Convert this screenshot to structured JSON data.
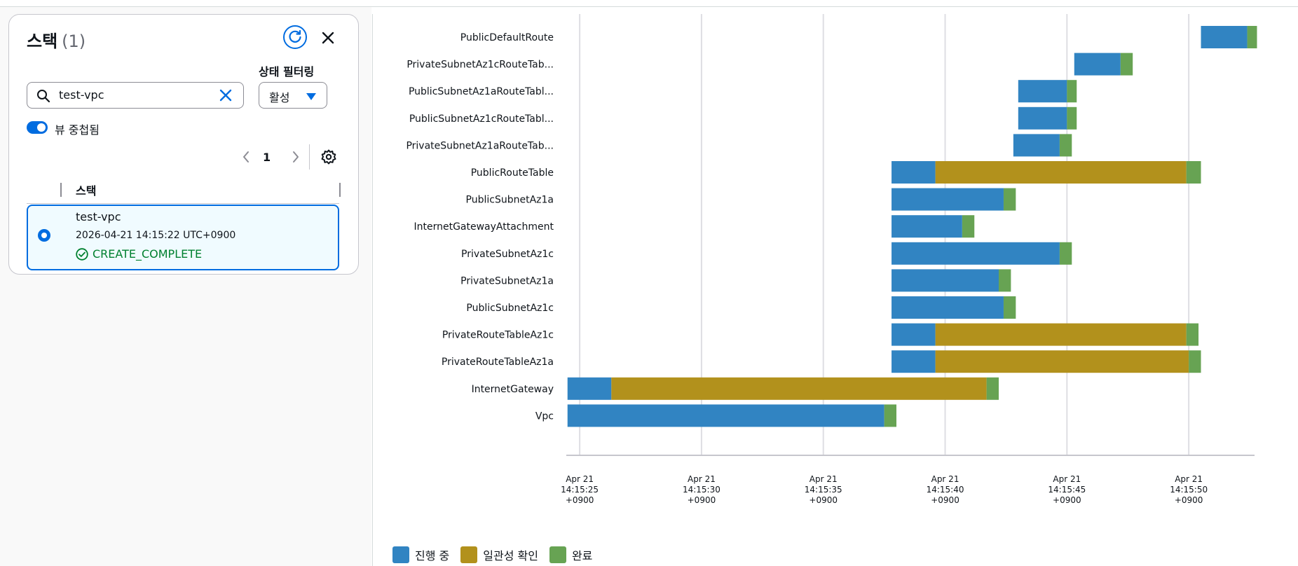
{
  "panel": {
    "title": "스택",
    "count": "(1)",
    "filter_label": "상태 필터링",
    "search_value": "test-vpc",
    "select_value": "활성",
    "toggle_label": "뷰 중첩됨",
    "toggle_on": true,
    "page_number": "1",
    "table_header": "스택",
    "row": {
      "name": "test-vpc",
      "date": "2026-04-21 14:15:22 UTC+0900",
      "status": "CREATE_COMPLETE",
      "selected": true
    }
  },
  "colors": {
    "in_progress": "#3184c2",
    "consistency_check": "#b2911c",
    "complete": "#67a353",
    "accent": "#006ce0",
    "success": "#00802f"
  },
  "legend": {
    "in_progress": "진행 중",
    "consistency_check": "일관성 확인",
    "complete": "완료"
  },
  "chart_data": {
    "type": "bar",
    "orientation": "horizontal-timeline",
    "time_unit": "seconds past Apr 21 14:15 +0900",
    "xlim": [
      24.45,
      52.7
    ],
    "x_ticks": [
      {
        "value": 25,
        "l1": "Apr 21",
        "l2": "14:15:25",
        "l3": "+0900"
      },
      {
        "value": 30,
        "l1": "Apr 21",
        "l2": "14:15:30",
        "l3": "+0900"
      },
      {
        "value": 35,
        "l1": "Apr 21",
        "l2": "14:15:35",
        "l3": "+0900"
      },
      {
        "value": 40,
        "l1": "Apr 21",
        "l2": "14:15:40",
        "l3": "+0900"
      },
      {
        "value": 45,
        "l1": "Apr 21",
        "l2": "14:15:45",
        "l3": "+0900"
      },
      {
        "value": 50,
        "l1": "Apr 21",
        "l2": "14:15:50",
        "l3": "+0900"
      }
    ],
    "resources": [
      {
        "name": "PublicDefaultRoute",
        "start": 50.5,
        "consistency_start": null,
        "complete_start": 52.4,
        "end": 52.8
      },
      {
        "name": "PrivateSubnetAz1cRouteTab...",
        "start": 45.3,
        "consistency_start": null,
        "complete_start": 47.2,
        "end": 47.7
      },
      {
        "name": "PublicSubnetAz1aRouteTabl...",
        "start": 43.0,
        "consistency_start": null,
        "complete_start": 45.0,
        "end": 45.4
      },
      {
        "name": "PublicSubnetAz1cRouteTabl...",
        "start": 43.0,
        "consistency_start": null,
        "complete_start": 45.0,
        "end": 45.4
      },
      {
        "name": "PrivateSubnetAz1aRouteTab...",
        "start": 42.8,
        "consistency_start": null,
        "complete_start": 44.7,
        "end": 45.2
      },
      {
        "name": "PublicRouteTable",
        "start": 37.8,
        "consistency_start": 39.6,
        "complete_start": 49.9,
        "end": 50.5
      },
      {
        "name": "PublicSubnetAz1a",
        "start": 37.8,
        "consistency_start": null,
        "complete_start": 42.4,
        "end": 42.9
      },
      {
        "name": "InternetGatewayAttachment",
        "start": 37.8,
        "consistency_start": null,
        "complete_start": 40.7,
        "end": 41.2
      },
      {
        "name": "PrivateSubnetAz1c",
        "start": 37.8,
        "consistency_start": null,
        "complete_start": 44.7,
        "end": 45.2
      },
      {
        "name": "PrivateSubnetAz1a",
        "start": 37.8,
        "consistency_start": null,
        "complete_start": 42.2,
        "end": 42.7
      },
      {
        "name": "PublicSubnetAz1c",
        "start": 37.8,
        "consistency_start": null,
        "complete_start": 42.4,
        "end": 42.9
      },
      {
        "name": "PrivateRouteTableAz1c",
        "start": 37.8,
        "consistency_start": 39.6,
        "complete_start": 49.9,
        "end": 50.4
      },
      {
        "name": "PrivateRouteTableAz1a",
        "start": 37.8,
        "consistency_start": 39.6,
        "complete_start": 50.0,
        "end": 50.5
      },
      {
        "name": "InternetGateway",
        "start": 24.5,
        "consistency_start": 26.3,
        "complete_start": 41.7,
        "end": 42.2
      },
      {
        "name": "Vpc",
        "start": 24.5,
        "consistency_start": null,
        "complete_start": 37.5,
        "end": 38.0
      }
    ]
  }
}
